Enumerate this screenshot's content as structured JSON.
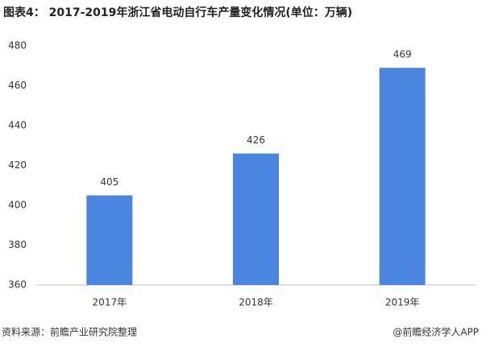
{
  "chart_data": {
    "type": "bar",
    "title": "图表4： 2017-2019年浙江省电动自行车产量变化情况(单位：万辆)",
    "categories": [
      "2017年",
      "2018年",
      "2019年"
    ],
    "values": [
      405,
      426,
      469
    ],
    "color": "#4a86e0",
    "ylim": [
      360,
      480
    ],
    "yticks": [
      360,
      380,
      400,
      420,
      440,
      460,
      480
    ],
    "grid": false,
    "source": "资料来源：前瞻产业研究院整理",
    "credit": "@前瞻经济学人APP"
  }
}
